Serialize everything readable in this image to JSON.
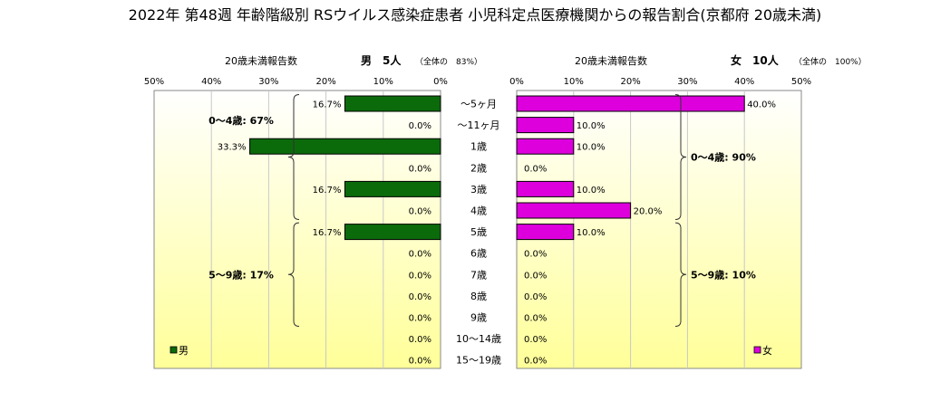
{
  "title": "2022年 第48週 年齢階級別 RSウイルス感染症患者 小児科定点医療機関からの報告割合(京都府 20歳未満)",
  "colors": {
    "male": "#0b6b0b",
    "female": "#dd00dd",
    "bg_top": "#ffffff",
    "bg_bottom": "#ffff99"
  },
  "chart_data": {
    "type": "bar",
    "orientation": "horizontal-butterfly",
    "categories": [
      "～5ヶ月",
      "～11ヶ月",
      "1歳",
      "2歳",
      "3歳",
      "4歳",
      "5歳",
      "6歳",
      "7歳",
      "8歳",
      "9歳",
      "10～14歳",
      "15～19歳"
    ],
    "xlim": [
      0,
      50
    ],
    "ticks": [
      "0%",
      "10%",
      "20%",
      "30%",
      "40%",
      "50%"
    ],
    "grid": true,
    "male": {
      "sub_label": "20歳未満報告数",
      "header_label": "男　5人",
      "total_note": "（全体の　83%）",
      "legend_label": "男",
      "values": [
        16.7,
        0.0,
        33.3,
        0.0,
        16.7,
        0.0,
        16.7,
        0.0,
        0.0,
        0.0,
        0.0,
        0.0,
        0.0
      ],
      "labels": [
        "16.7%",
        "0.0%",
        "33.3%",
        "0.0%",
        "16.7%",
        "0.0%",
        "16.7%",
        "0.0%",
        "0.0%",
        "0.0%",
        "0.0%",
        "0.0%",
        "0.0%"
      ],
      "groups": [
        {
          "label": "0～4歳: 67%",
          "from": 0,
          "to": 5
        },
        {
          "label": "5～9歳: 17%",
          "from": 6,
          "to": 10
        }
      ]
    },
    "female": {
      "sub_label": "20歳未満報告数",
      "header_label": "女　10人",
      "total_note": "（全体の　100%）",
      "legend_label": "女",
      "values": [
        40.0,
        10.0,
        10.0,
        0.0,
        10.0,
        20.0,
        10.0,
        0.0,
        0.0,
        0.0,
        0.0,
        0.0,
        0.0
      ],
      "labels": [
        "40.0%",
        "10.0%",
        "10.0%",
        "0.0%",
        "10.0%",
        "20.0%",
        "10.0%",
        "0.0%",
        "0.0%",
        "0.0%",
        "0.0%",
        "0.0%",
        "0.0%"
      ],
      "groups": [
        {
          "label": "0～4歳: 90%",
          "from": 0,
          "to": 5
        },
        {
          "label": "5～9歳: 10%",
          "from": 6,
          "to": 10
        }
      ]
    }
  }
}
